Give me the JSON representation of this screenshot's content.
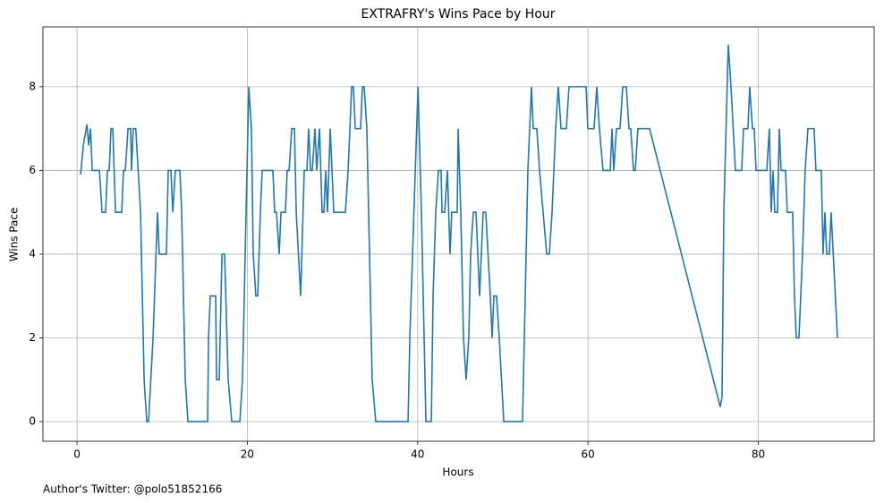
{
  "chart_data": {
    "type": "line",
    "title": "EXTRAFRY's Wins Pace by Hour",
    "x_label": "Hours",
    "y_label": "Wins Pace",
    "annotation": "Author's Twitter: @polo51852166",
    "xlim": [
      -4.0,
      93.6
    ],
    "ylim": [
      -0.47,
      9.43
    ],
    "xticks": [
      0,
      20,
      40,
      60,
      80
    ],
    "yticks": [
      0,
      2,
      4,
      6,
      8
    ],
    "grid": true,
    "x": [
      0.42,
      0.74,
      1.16,
      1.37,
      1.58,
      1.79,
      2.63,
      2.94,
      3.36,
      3.57,
      3.78,
      3.99,
      4.2,
      4.52,
      5.25,
      5.46,
      5.67,
      5.99,
      6.3,
      6.4,
      6.6,
      6.9,
      7.46,
      7.88,
      8.19,
      8.4,
      8.93,
      9.45,
      9.66,
      10.5,
      10.71,
      11.03,
      11.24,
      11.55,
      12.08,
      12.29,
      12.71,
      13.03,
      15.34,
      15.44,
      15.65,
      16.28,
      16.39,
      16.7,
      17.02,
      17.33,
      17.75,
      18.17,
      19.12,
      19.43,
      20.17,
      20.48,
      20.69,
      21.0,
      21.22,
      21.53,
      21.74,
      23.0,
      23.21,
      23.42,
      23.74,
      23.95,
      24.47,
      24.68,
      24.9,
      25.21,
      25.53,
      25.74,
      26.26,
      26.68,
      27.0,
      27.2,
      27.42,
      27.63,
      27.94,
      28.15,
      28.47,
      28.78,
      28.99,
      29.2,
      29.41,
      29.73,
      30.15,
      31.51,
      31.83,
      32.25,
      32.46,
      32.67,
      33.3,
      33.51,
      33.72,
      34.03,
      34.45,
      34.66,
      35.08,
      38.87,
      39.08,
      40.04,
      40.44,
      40.97,
      41.6,
      41.81,
      42.12,
      42.44,
      42.75,
      42.86,
      43.17,
      43.49,
      43.8,
      44.0,
      44.64,
      44.75,
      45.06,
      45.38,
      45.69,
      46.0,
      46.22,
      46.53,
      46.85,
      47.27,
      47.69,
      48.0,
      48.53,
      48.74,
      48.95,
      49.26,
      49.58,
      50.11,
      52.31,
      52.63,
      52.94,
      53.36,
      53.57,
      53.99,
      54.31,
      54.73,
      55.15,
      55.46,
      55.78,
      56.2,
      56.51,
      56.83,
      57.46,
      57.77,
      59.77,
      59.98,
      60.71,
      61.03,
      61.34,
      61.76,
      62.61,
      62.82,
      63.03,
      63.34,
      63.76,
      64.08,
      64.5,
      64.81,
      65.02,
      65.34,
      65.55,
      65.86,
      67.23,
      75.53,
      75.74,
      75.95,
      76.47,
      76.79,
      77.31,
      78.05,
      78.26,
      78.78,
      78.99,
      79.31,
      79.52,
      79.73,
      80.99,
      81.3,
      81.51,
      81.72,
      81.93,
      82.25,
      82.46,
      82.67,
      83.19,
      83.4,
      84.03,
      84.24,
      84.45,
      84.77,
      85.19,
      85.5,
      85.82,
      86.55,
      86.76,
      87.39,
      87.6,
      87.82,
      88.03,
      88.34,
      88.55,
      89.29
    ],
    "series": [
      {
        "name": "Wins Pace",
        "color": "#1f77b4",
        "values": [
          5.9,
          6.6,
          7.1,
          6.6,
          7,
          6,
          6,
          5,
          5,
          6,
          6,
          7,
          7,
          5,
          5,
          6,
          6,
          7,
          7,
          6,
          7,
          7,
          5,
          1,
          0,
          0,
          2,
          5,
          4,
          4,
          6,
          6,
          5,
          6,
          6,
          5,
          1,
          0,
          0,
          2,
          3,
          3,
          1,
          1,
          4,
          4,
          1,
          0,
          0,
          1,
          8,
          7,
          4,
          3,
          3,
          5,
          6,
          6,
          5,
          5,
          4,
          5,
          5,
          6,
          6,
          7,
          7,
          5,
          3,
          6,
          6,
          7,
          6,
          6,
          7,
          6,
          7,
          5,
          5,
          6,
          5,
          7,
          5,
          5,
          6,
          8,
          8,
          7,
          7,
          8,
          8,
          7,
          3,
          1,
          0,
          0,
          2,
          8,
          5,
          0,
          0,
          3,
          5,
          6,
          6,
          5,
          5,
          6,
          4,
          5,
          5,
          7,
          5,
          2,
          1,
          2,
          4,
          5,
          5,
          3,
          5,
          5,
          3,
          2,
          3,
          3,
          2,
          0,
          0,
          3,
          6,
          8,
          7,
          7,
          6,
          5,
          4,
          4,
          5,
          7,
          8,
          7,
          7,
          8,
          8,
          7,
          7,
          8,
          7,
          6,
          6,
          7,
          6,
          7,
          7,
          8,
          8,
          7,
          7,
          6,
          6,
          7,
          7,
          0.35,
          0.6,
          5,
          9,
          8,
          6,
          6,
          7,
          7,
          8,
          7,
          7,
          6,
          6,
          7,
          5,
          6,
          5,
          5,
          7,
          6,
          6,
          5,
          5,
          3,
          2,
          2,
          4,
          6,
          7,
          7,
          6,
          6,
          4,
          5,
          4,
          4,
          5,
          2
        ]
      }
    ]
  }
}
